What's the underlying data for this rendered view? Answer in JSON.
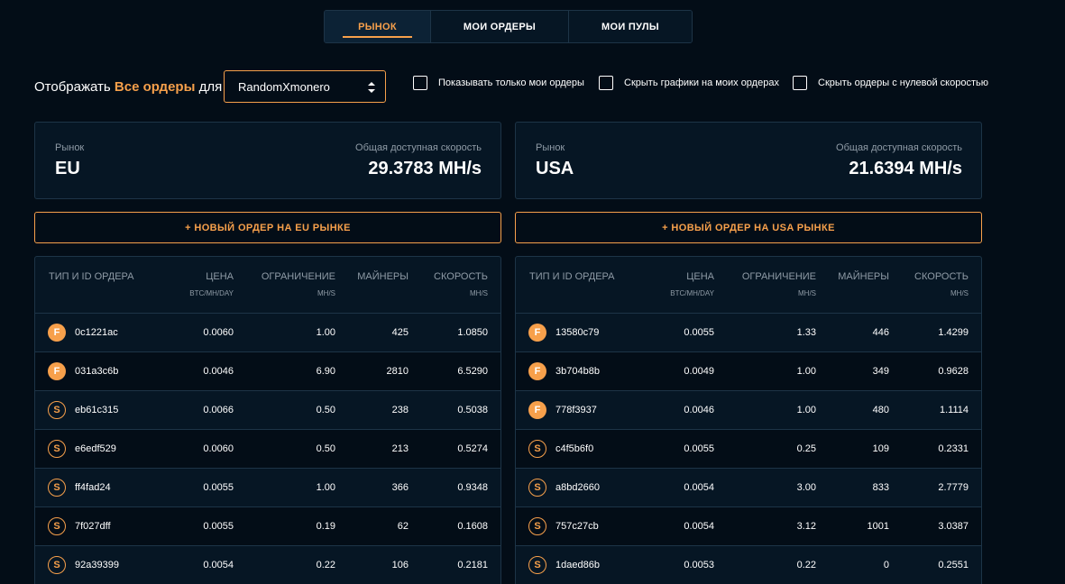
{
  "tabs": [
    {
      "label": "РЫНОК",
      "active": true
    },
    {
      "label": "МОИ ОРДЕРЫ",
      "active": false
    },
    {
      "label": "МОИ ПУЛЫ",
      "active": false
    }
  ],
  "filters": {
    "show_prefix": "Отображать",
    "show_accent": "Все ордеры",
    "show_suffix": "для",
    "algorithm": "RandomXmonero",
    "checkboxes": [
      {
        "label": "Показывать только мои ордеры",
        "checked": false
      },
      {
        "label": "Скрыть графики на моих ордерах",
        "checked": false
      },
      {
        "label": "Скрыть ордеры с нулевой скоростью",
        "checked": false
      }
    ]
  },
  "columns": {
    "id": "ТИП И ID ОРДЕРА",
    "price": "ЦЕНА",
    "price_unit": "BTC/MH/DAY",
    "limit": "ОГРАНИЧЕНИЕ",
    "limit_unit": "MH/S",
    "miners": "МАЙНЕРЫ",
    "speed": "СКОРОСТЬ",
    "speed_unit": "MH/S"
  },
  "markets": [
    {
      "market_label": "Рынок",
      "name": "EU",
      "speed_label": "Общая доступная скорость",
      "speed": "29.3783 MH/s",
      "new_order": "+ НОВЫЙ ОРДЕР НА EU РЫНКЕ",
      "orders": [
        {
          "type": "F",
          "id": "0c1221ac",
          "price": "0.0060",
          "limit": "1.00",
          "miners": "425",
          "speed": "1.0850"
        },
        {
          "type": "F",
          "id": "031a3c6b",
          "price": "0.0046",
          "limit": "6.90",
          "miners": "2810",
          "speed": "6.5290"
        },
        {
          "type": "S",
          "id": "eb61c315",
          "price": "0.0066",
          "limit": "0.50",
          "miners": "238",
          "speed": "0.5038"
        },
        {
          "type": "S",
          "id": "e6edf529",
          "price": "0.0060",
          "limit": "0.50",
          "miners": "213",
          "speed": "0.5274"
        },
        {
          "type": "S",
          "id": "ff4fad24",
          "price": "0.0055",
          "limit": "1.00",
          "miners": "366",
          "speed": "0.9348"
        },
        {
          "type": "S",
          "id": "7f027dff",
          "price": "0.0055",
          "limit": "0.19",
          "miners": "62",
          "speed": "0.1608"
        },
        {
          "type": "S",
          "id": "92a39399",
          "price": "0.0054",
          "limit": "0.22",
          "miners": "106",
          "speed": "0.2181"
        }
      ]
    },
    {
      "market_label": "Рынок",
      "name": "USA",
      "speed_label": "Общая доступная скорость",
      "speed": "21.6394 MH/s",
      "new_order": "+ НОВЫЙ ОРДЕР НА USA РЫНКЕ",
      "orders": [
        {
          "type": "F",
          "id": "13580c79",
          "price": "0.0055",
          "limit": "1.33",
          "miners": "446",
          "speed": "1.4299"
        },
        {
          "type": "F",
          "id": "3b704b8b",
          "price": "0.0049",
          "limit": "1.00",
          "miners": "349",
          "speed": "0.9628"
        },
        {
          "type": "F",
          "id": "778f3937",
          "price": "0.0046",
          "limit": "1.00",
          "miners": "480",
          "speed": "1.1114"
        },
        {
          "type": "S",
          "id": "c4f5b6f0",
          "price": "0.0055",
          "limit": "0.25",
          "miners": "109",
          "speed": "0.2331"
        },
        {
          "type": "S",
          "id": "a8bd2660",
          "price": "0.0054",
          "limit": "3.00",
          "miners": "833",
          "speed": "2.7779"
        },
        {
          "type": "S",
          "id": "757c27cb",
          "price": "0.0054",
          "limit": "3.12",
          "miners": "1001",
          "speed": "3.0387"
        },
        {
          "type": "S",
          "id": "1daed86b",
          "price": "0.0053",
          "limit": "0.22",
          "miners": "0",
          "speed": "0.2551"
        }
      ]
    }
  ]
}
